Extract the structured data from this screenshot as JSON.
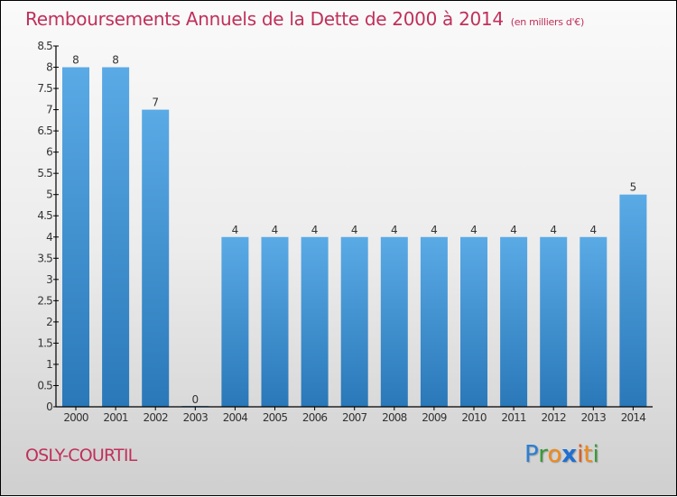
{
  "header": {
    "title": "Remboursements Annuels de la Dette de 2000 à 2014",
    "subtitle": "(en milliers d'€)"
  },
  "footer": {
    "city": "OSLY-COURTIL",
    "logo": {
      "letters": [
        {
          "ch": "P",
          "color": "#2a7fd4"
        },
        {
          "ch": "r",
          "color": "#3a9a3a"
        },
        {
          "ch": "o",
          "color": "#f08a1c"
        },
        {
          "ch": "x",
          "color": "#1f6fd0"
        },
        {
          "ch": "i",
          "color": "#e05a1a"
        },
        {
          "ch": "t",
          "color": "#f08a1c"
        },
        {
          "ch": "i",
          "color": "#3a9a3a"
        }
      ]
    }
  },
  "colors": {
    "bar_top": "#5aaae6",
    "bar_bottom": "#2a78b8",
    "title": "#c0305a"
  },
  "chart_data": {
    "type": "bar",
    "title": "Remboursements Annuels de la Dette de 2000 à 2014",
    "subtitle": "(en milliers d'€)",
    "xlabel": "",
    "ylabel": "",
    "categories": [
      "2000",
      "2001",
      "2002",
      "2003",
      "2004",
      "2005",
      "2006",
      "2007",
      "2008",
      "2009",
      "2010",
      "2011",
      "2012",
      "2013",
      "2014"
    ],
    "values": [
      8,
      8,
      7,
      0,
      4,
      4,
      4,
      4,
      4,
      4,
      4,
      4,
      4,
      4,
      5
    ],
    "ylim": [
      0,
      8.5
    ],
    "yticks": [
      0,
      0.5,
      1,
      1.5,
      2,
      2.5,
      3,
      3.5,
      4,
      4.5,
      5,
      5.5,
      6,
      6.5,
      7,
      7.5,
      8,
      8.5
    ],
    "ytick_labels": [
      "0",
      "0.5",
      "1",
      "1.5",
      "2",
      "2.5",
      "3",
      "3.5",
      "4",
      "4.5",
      "5",
      "5.5",
      "6",
      "6.5",
      "7",
      "7.5",
      "8",
      "8.5"
    ],
    "grid": false,
    "legend": "none"
  }
}
